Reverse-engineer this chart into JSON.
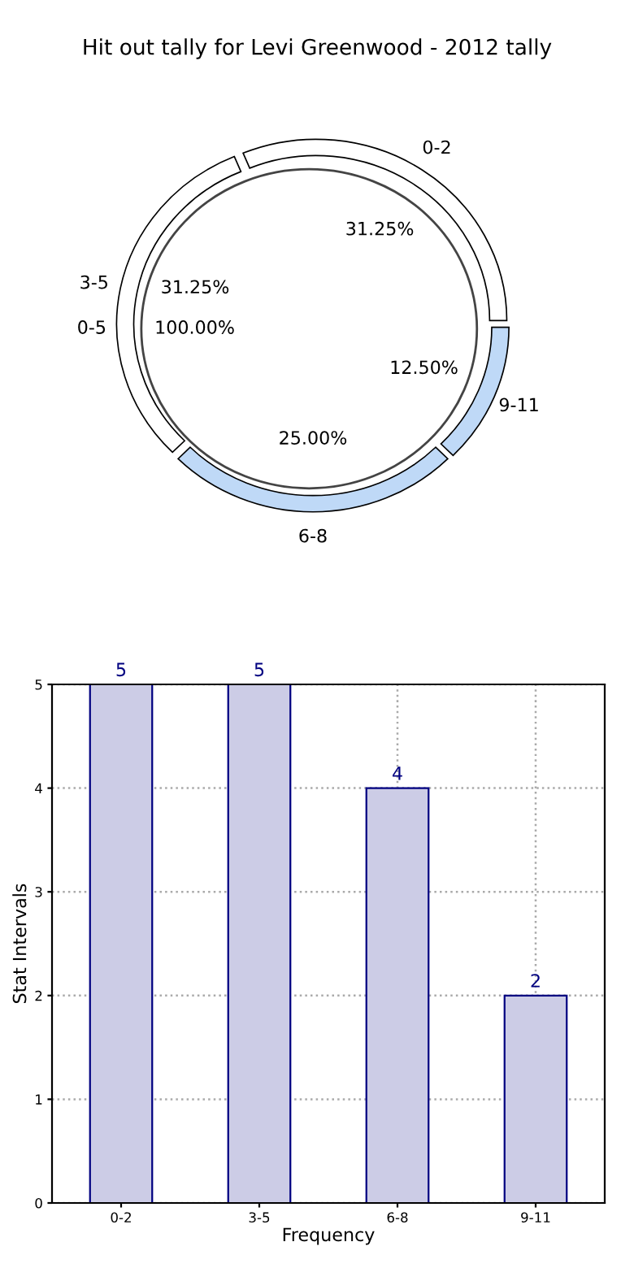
{
  "chart_data": [
    {
      "type": "donut",
      "title": "Hit out tally for Levi Greenwood - 2012 tally",
      "categories": [
        "0-2",
        "3-5",
        "6-8",
        "9-11"
      ],
      "values": [
        31.25,
        31.25,
        25.0,
        12.5
      ],
      "colors": [
        "#ffffff",
        "#ffffff",
        "#bfd9f7",
        "#bfd9f7"
      ],
      "value_labels": [
        "31.25%",
        "31.25%",
        "25.00%",
        "12.50%"
      ]
    },
    {
      "type": "pie",
      "categories": [
        "0-5"
      ],
      "values": [
        100
      ],
      "colors": [
        "#ffffff"
      ],
      "value_labels": [
        "100.00%"
      ]
    },
    {
      "type": "bar",
      "categories": [
        "0-2",
        "3-5",
        "6-8",
        "9-11"
      ],
      "values": [
        5,
        5,
        4,
        2
      ],
      "color": "#ccccE6",
      "xlabel": "Frequency",
      "ylabel": "Stat Intervals",
      "ylim": [
        0,
        5
      ],
      "yticks": [
        0,
        1,
        2,
        3,
        4,
        5
      ],
      "grid": true,
      "data_labels": true
    }
  ]
}
